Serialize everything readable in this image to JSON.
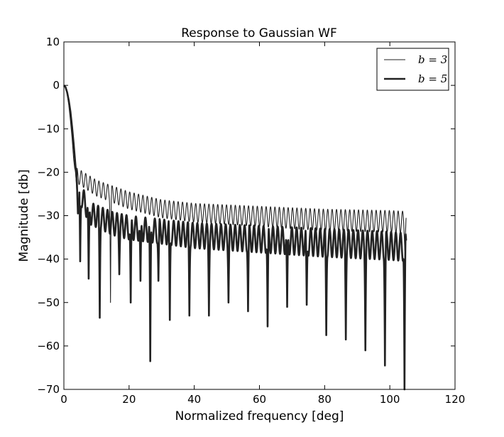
{
  "chart_data": {
    "type": "line",
    "title": "Response to Gaussian WF",
    "xlabel": "Normalized frequency [deg]",
    "ylabel": "Magnitude [db]",
    "xlim": [
      0,
      120
    ],
    "ylim": [
      -70,
      10
    ],
    "xticks": [
      0,
      20,
      40,
      60,
      80,
      100,
      120
    ],
    "yticks": [
      10,
      0,
      -10,
      -20,
      -30,
      -40,
      -50,
      -60,
      -70
    ],
    "grid": false,
    "legend_position": "top-right",
    "colors": {
      "line": "#222222",
      "axes": "#000000",
      "background": "#ffffff"
    },
    "series": [
      {
        "name": "b = 3",
        "line_weight": "thin",
        "x_max": 105,
        "main_lobe": [
          [
            0,
            0
          ],
          [
            0.5,
            -0.6
          ],
          [
            1,
            -2
          ],
          [
            1.5,
            -4.5
          ],
          [
            2,
            -8
          ],
          [
            2.5,
            -12
          ],
          [
            3,
            -17
          ],
          [
            3.3,
            -19
          ],
          [
            3.6,
            -20
          ],
          [
            3.8,
            -22.5
          ],
          [
            4,
            -25
          ]
        ],
        "envelope": [
          [
            4,
            -22.5
          ],
          [
            10,
            -25.5
          ],
          [
            20,
            -28.5
          ],
          [
            30,
            -30.5
          ],
          [
            40,
            -31.5
          ],
          [
            60,
            -32.5
          ],
          [
            80,
            -33.5
          ],
          [
            100,
            -33.8
          ],
          [
            105,
            -34
          ]
        ],
        "valley_depth": [
          [
            4,
            -3.5
          ],
          [
            20,
            -4
          ],
          [
            50,
            -4.5
          ],
          [
            80,
            -5
          ],
          [
            105,
            -5
          ]
        ],
        "period": 1.35,
        "deep_nulls": [
          [
            14.3,
            -50
          ],
          [
            104.6,
            -38
          ]
        ]
      },
      {
        "name": "b = 5",
        "line_weight": "thick",
        "x_max": 105,
        "main_lobe": [
          [
            0,
            0
          ],
          [
            0.5,
            -0.4
          ],
          [
            1,
            -1.6
          ],
          [
            1.5,
            -3.5
          ],
          [
            2,
            -6
          ],
          [
            2.5,
            -9.5
          ],
          [
            3,
            -13.5
          ],
          [
            3.5,
            -18
          ],
          [
            4,
            -22.5
          ],
          [
            4.3,
            -29.5
          ],
          [
            4.7,
            -27
          ]
        ],
        "envelope": [
          [
            4.7,
            -27
          ],
          [
            8,
            -32
          ],
          [
            15,
            -34.5
          ],
          [
            20,
            -35.5
          ],
          [
            30,
            -36.5
          ],
          [
            40,
            -37.5
          ],
          [
            60,
            -38.5
          ],
          [
            80,
            -39.5
          ],
          [
            100,
            -40.2
          ],
          [
            105,
            -40.5
          ]
        ],
        "valley_depth": [
          [
            4.7,
            -5
          ],
          [
            20,
            -5.5
          ],
          [
            50,
            -6
          ],
          [
            80,
            -6.5
          ],
          [
            105,
            -6.5
          ]
        ],
        "period": 1.45,
        "deep_nulls": [
          [
            5,
            -40.5
          ],
          [
            7.6,
            -44.5
          ],
          [
            11,
            -53.5
          ],
          [
            17,
            -43.5
          ],
          [
            20.5,
            -50
          ],
          [
            23.5,
            -45
          ],
          [
            26.5,
            -63.5
          ],
          [
            29,
            -45
          ],
          [
            32.5,
            -54
          ],
          [
            38.5,
            -53
          ],
          [
            44.5,
            -53
          ],
          [
            50.5,
            -50
          ],
          [
            56.5,
            -52
          ],
          [
            62.5,
            -55.5
          ],
          [
            68.5,
            -51
          ],
          [
            74.5,
            -50.5
          ],
          [
            80.5,
            -57.5
          ],
          [
            86.5,
            -58.5
          ],
          [
            92.5,
            -61
          ],
          [
            98.5,
            -64.5
          ],
          [
            104.5,
            -70
          ]
        ]
      }
    ]
  }
}
